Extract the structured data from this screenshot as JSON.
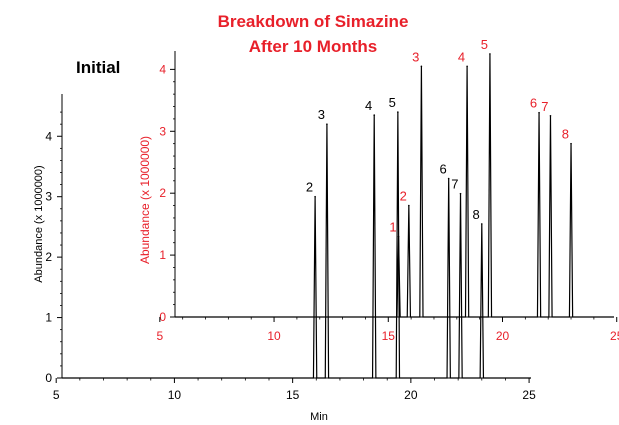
{
  "chart_data": [
    {
      "type": "line",
      "name": "Initial",
      "label": "Initial",
      "xlabel": "Min",
      "ylabel": "Abundance (x 1000000)",
      "xlim": [
        3.3,
        25.8
      ],
      "ylim": [
        0,
        4.6
      ],
      "xticks": [
        "5",
        "10",
        "15",
        "20",
        "25"
      ],
      "yticks": [
        "0",
        "1",
        "2",
        "3",
        "4"
      ],
      "color": "#000000",
      "peaks": [
        {
          "label": "2",
          "x": 15.95,
          "y": 3.0
        },
        {
          "label": "3",
          "x": 16.45,
          "y": 4.2
        },
        {
          "label": "4",
          "x": 18.45,
          "y": 4.35
        },
        {
          "label": "5",
          "x": 19.45,
          "y": 4.4
        },
        {
          "label": "6",
          "x": 21.6,
          "y": 3.3
        },
        {
          "label": "7",
          "x": 22.1,
          "y": 3.05
        },
        {
          "label": "8",
          "x": 23.0,
          "y": 2.55
        }
      ]
    },
    {
      "type": "line",
      "name": "Breakdown of Simazine After 10 Months",
      "title_line1": "Breakdown of Simazine",
      "title_line2": "After 10 Months",
      "ylabel": "Abundance (x 1000000)",
      "xlim": [
        3.3,
        25.8
      ],
      "ylim": [
        0,
        4.2
      ],
      "xticks": [
        "5",
        "10",
        "15",
        "20",
        "25"
      ],
      "yticks": [
        "0",
        "1",
        "2",
        "3",
        "4"
      ],
      "color": "#e8202a",
      "peaks": [
        {
          "label": "1",
          "x": 15.45,
          "y": 1.3
        },
        {
          "label": "2",
          "x": 15.9,
          "y": 1.8
        },
        {
          "label": "3",
          "x": 16.45,
          "y": 4.05
        },
        {
          "label": "4",
          "x": 18.45,
          "y": 4.05
        },
        {
          "label": "5",
          "x": 19.45,
          "y": 4.25
        },
        {
          "label": "6",
          "x": 21.6,
          "y": 3.3
        },
        {
          "label": "7",
          "x": 22.1,
          "y": 3.25
        },
        {
          "label": "8",
          "x": 23.0,
          "y": 2.8
        }
      ]
    }
  ]
}
